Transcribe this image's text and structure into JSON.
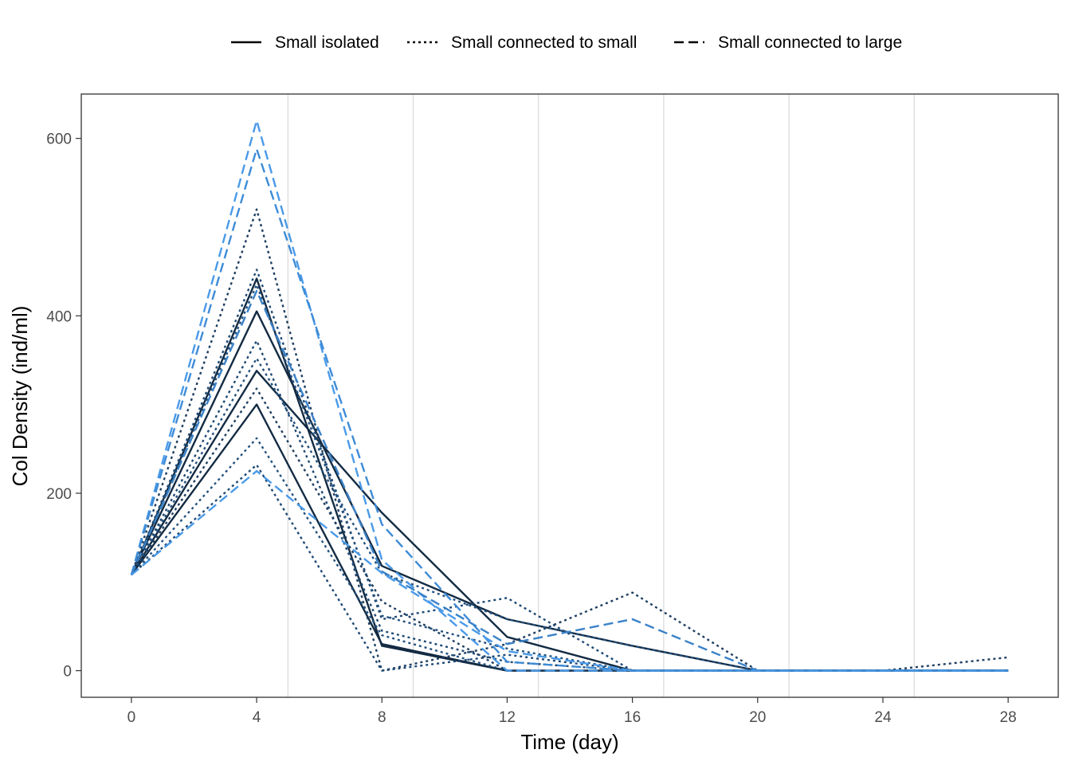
{
  "chart_data": {
    "type": "line",
    "title": "",
    "xlabel": "Time (day)",
    "ylabel": "Col Density (ind/ml)",
    "xlim": [
      -1.6,
      29.6
    ],
    "ylim": [
      -30,
      650
    ],
    "xticks": [
      0,
      4,
      8,
      12,
      16,
      20,
      24,
      28
    ],
    "xtick_labels": [
      "0",
      "4",
      "8",
      "12",
      "16",
      "20",
      "24",
      "28"
    ],
    "yticks": [
      0,
      200,
      400,
      600
    ],
    "ytick_labels": [
      "0",
      "200",
      "400",
      "600"
    ],
    "vertical_gridlines_at": [
      5,
      9,
      13,
      17,
      21,
      25
    ],
    "grid": "vertical minor lines only",
    "legend_position": "top",
    "x": [
      0,
      4,
      8,
      12,
      16,
      20,
      24,
      28
    ],
    "groups": [
      {
        "name": "Small isolated",
        "dash": "solid",
        "color": "#132b43"
      },
      {
        "name": "Small connected to small",
        "dash": "dotted",
        "color": "#1f4a75"
      },
      {
        "name": "Small connected to large",
        "dash": "dashed",
        "color": "#3e8bd6"
      }
    ],
    "series": [
      {
        "group": 0,
        "color": "#132b43",
        "values": [
          108,
          442,
          28,
          0,
          0,
          0,
          0,
          0
        ]
      },
      {
        "group": 0,
        "color": "#132b43",
        "values": [
          108,
          405,
          118,
          58,
          28,
          0,
          0,
          0
        ]
      },
      {
        "group": 0,
        "color": "#132b43",
        "values": [
          108,
          338,
          178,
          38,
          0,
          0,
          0,
          0
        ]
      },
      {
        "group": 0,
        "color": "#132b43",
        "values": [
          108,
          300,
          30,
          0,
          0,
          0,
          0,
          0
        ]
      },
      {
        "group": 1,
        "color": "#1f3e60",
        "values": [
          108,
          520,
          0,
          30,
          88,
          0,
          0,
          15
        ]
      },
      {
        "group": 1,
        "color": "#1f4a75",
        "values": [
          108,
          452,
          58,
          82,
          0,
          0,
          0,
          0
        ]
      },
      {
        "group": 1,
        "color": "#24527f",
        "values": [
          108,
          435,
          62,
          25,
          0,
          0,
          0,
          0
        ]
      },
      {
        "group": 1,
        "color": "#1f4a75",
        "values": [
          108,
          372,
          45,
          10,
          0,
          0,
          0,
          0
        ]
      },
      {
        "group": 1,
        "color": "#24527f",
        "values": [
          108,
          352,
          110,
          58,
          28,
          0,
          0,
          0
        ]
      },
      {
        "group": 1,
        "color": "#1f3e60",
        "values": [
          108,
          318,
          78,
          0,
          0,
          0,
          0,
          0
        ]
      },
      {
        "group": 1,
        "color": "#24527f",
        "values": [
          108,
          262,
          40,
          0,
          0,
          0,
          0,
          0
        ]
      },
      {
        "group": 1,
        "color": "#1f4a75",
        "values": [
          108,
          232,
          0,
          18,
          0,
          0,
          0,
          0
        ]
      },
      {
        "group": 2,
        "color": "#4a9ae8",
        "values": [
          108,
          620,
          125,
          0,
          0,
          0,
          0,
          0
        ]
      },
      {
        "group": 2,
        "color": "#3e8bd6",
        "values": [
          108,
          588,
          165,
          10,
          0,
          0,
          0,
          0
        ]
      },
      {
        "group": 2,
        "color": "#3a82c8",
        "values": [
          108,
          428,
          112,
          30,
          58,
          0,
          0,
          0
        ]
      },
      {
        "group": 2,
        "color": "#4a9ae8",
        "values": [
          108,
          225,
          110,
          22,
          0,
          0,
          0,
          0
        ]
      }
    ]
  }
}
